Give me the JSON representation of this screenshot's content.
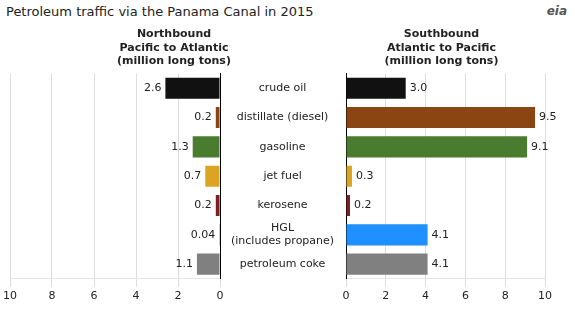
{
  "title": "Petroleum traffic via the Panama Canal in 2015",
  "annotations": [
    "eia"
  ],
  "chart_data": [
    {
      "type": "bar",
      "orientation": "horizontal",
      "title": "Northbound\nPacific to Atlantic\n(million long tons)",
      "categories": [
        "crude oil",
        "distillate (diesel)",
        "gasoline",
        "jet fuel",
        "kerosene",
        "HGL\n(includes propane)",
        "petroleum coke"
      ],
      "values": [
        2.6,
        0.2,
        1.3,
        0.7,
        0.2,
        0.04,
        1.1
      ],
      "colors": [
        "#111111",
        "#8B4513",
        "#4a7c2f",
        "#DAA520",
        "#7B2020",
        "#1E90FF",
        "#808080"
      ],
      "xlim": [
        0,
        10
      ],
      "xticks": [
        0,
        2,
        4,
        6,
        8,
        10
      ],
      "grid": true,
      "data_labels": true
    },
    {
      "type": "bar",
      "orientation": "horizontal",
      "title": "Southbound\nAtlantic to Pacific\n(million long tons)",
      "categories": [
        "crude oil",
        "distillate (diesel)",
        "gasoline",
        "jet fuel",
        "kerosene",
        "HGL\n(includes propane)",
        "petroleum coke"
      ],
      "values": [
        3.0,
        9.5,
        9.1,
        0.3,
        0.2,
        4.1,
        4.1
      ],
      "value_labels": [
        "3.0",
        "9.5",
        "9.1",
        "0.3",
        "0.2",
        "4.1",
        "4.1"
      ],
      "colors": [
        "#111111",
        "#8B4513",
        "#4a7c2f",
        "#DAA520",
        "#7B2020",
        "#1E90FF",
        "#808080"
      ],
      "xlim": [
        0,
        10
      ],
      "xticks": [
        0,
        2,
        4,
        6,
        8,
        10
      ],
      "grid": true,
      "data_labels": true,
      "tick_labels": "x"
    }
  ]
}
